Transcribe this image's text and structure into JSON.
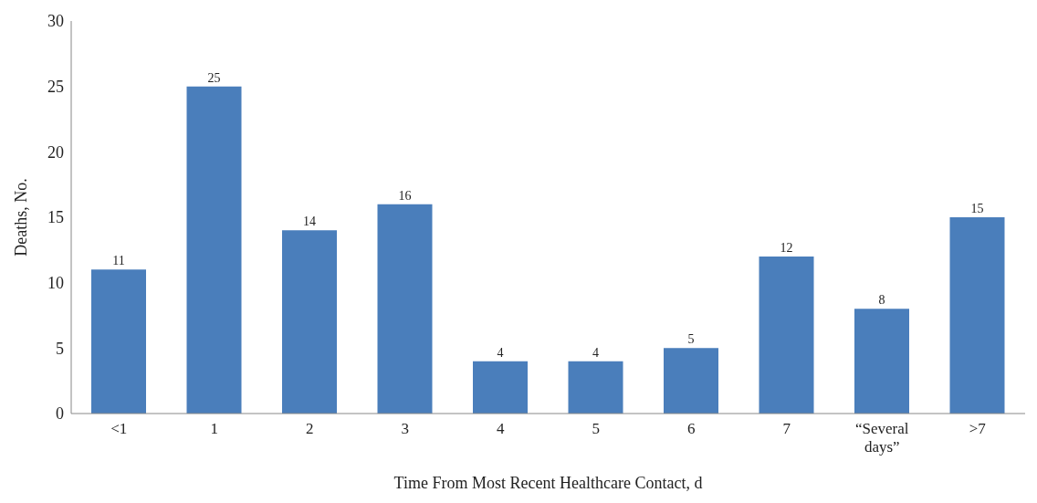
{
  "chart_data": {
    "type": "bar",
    "xlabel": "Time From Most Recent Healthcare Contact, d",
    "ylabel": "Deaths, No.",
    "categories": [
      "<1",
      "1",
      "2",
      "3",
      "4",
      "5",
      "6",
      "7",
      "“Several days”",
      ">7"
    ],
    "values": [
      11,
      25,
      14,
      16,
      4,
      4,
      5,
      12,
      8,
      15
    ],
    "color": "#4a7ebb",
    "ylim": [
      0,
      30
    ],
    "yticks": [
      0,
      5,
      10,
      15,
      20,
      25,
      30
    ],
    "grid": false,
    "data_labels": true
  }
}
